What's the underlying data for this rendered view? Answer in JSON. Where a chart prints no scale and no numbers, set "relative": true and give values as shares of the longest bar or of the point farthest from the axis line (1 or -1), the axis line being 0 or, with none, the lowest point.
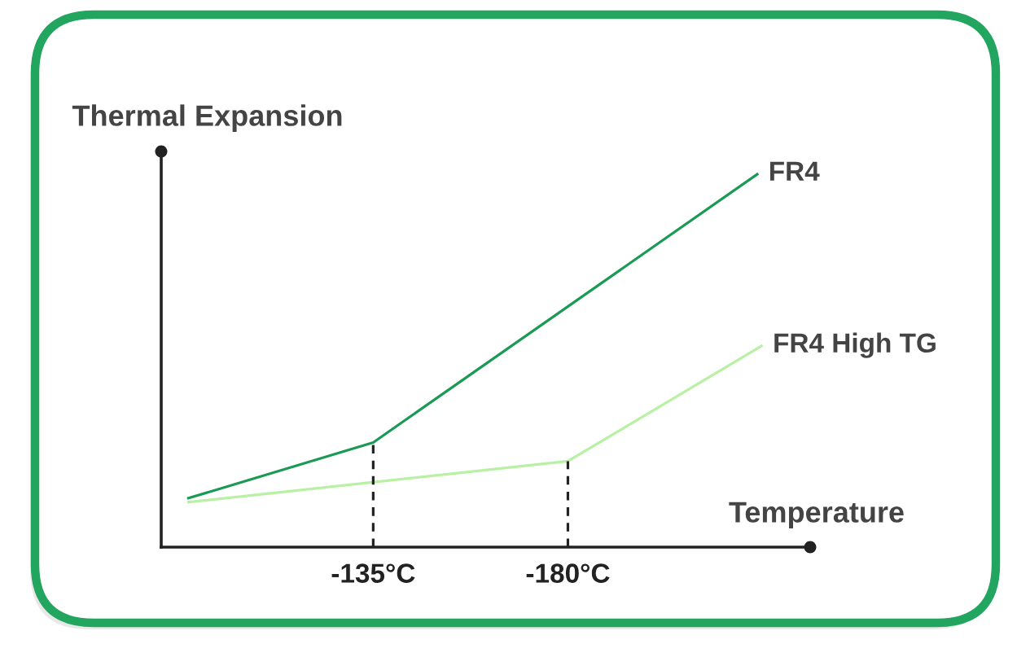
{
  "chart_data": {
    "type": "line",
    "xlabel": "Temperature",
    "ylabel": "Thermal Expansion",
    "relative": true,
    "tick_labels": "x",
    "xlim": [
      -86,
      -236
    ],
    "xticks": [
      {
        "value": -135,
        "label": "-135°C"
      },
      {
        "value": -180,
        "label": "-180°C"
      }
    ],
    "series": [
      {
        "name": "FR4",
        "color": "#1a9a55",
        "x": [
          -92,
          -135,
          -224
        ],
        "values": [
          0.13,
          0.28,
          1
        ]
      },
      {
        "name": "FR4 High TG",
        "color": "#b8f0a4",
        "x": [
          -92,
          -180,
          -225
        ],
        "values": [
          0.12,
          0.23,
          0.54
        ]
      },
      {
        "color": "#222222",
        "line_style": "dashed",
        "x": [
          -135,
          -135
        ],
        "values": [
          0,
          0.28
        ]
      },
      {
        "color": "#222222",
        "line_style": "dashed",
        "x": [
          -180,
          -180
        ],
        "values": [
          0,
          0.23
        ]
      }
    ]
  }
}
